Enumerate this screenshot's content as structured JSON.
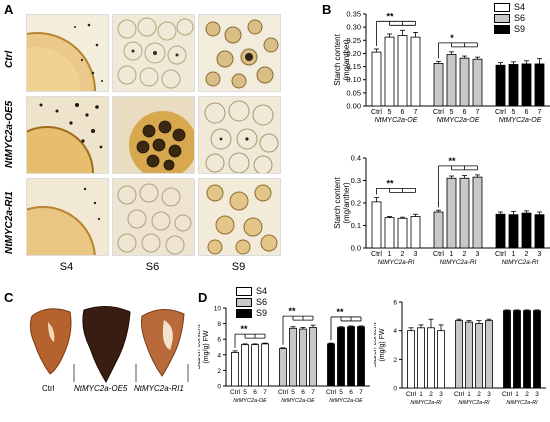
{
  "panels": {
    "A": "A",
    "B": "B",
    "C": "C",
    "D": "D"
  },
  "panelA": {
    "rows": [
      "Ctrl",
      "NtMYC2a-OE5",
      "NtMYC2a-RI1"
    ],
    "cols": [
      "S4",
      "S6",
      "S9"
    ]
  },
  "panelC": {
    "labels": [
      "Ctrl",
      "NtMYC2a-OE5",
      "NtMYC2a-RI1"
    ]
  },
  "legend": {
    "s4": "S4",
    "s6": "S6",
    "s9": "S9"
  },
  "colors": {
    "S4": "#ffffff",
    "S6": "#c8c8c8",
    "S9": "#000000"
  },
  "chart_data": [
    {
      "id": "B-top",
      "type": "bar",
      "ylabel": "Starch content (mg/anther)",
      "ylim": [
        0,
        0.35
      ],
      "yticks": [
        "0.00",
        "0.05",
        "0.10",
        "0.15",
        "0.20",
        "0.25",
        "0.30",
        "0.35"
      ],
      "groups": [
        {
          "label": "NtMYC2a-OE",
          "series": "S4",
          "categories": [
            "Ctrl",
            "5",
            "6",
            "7"
          ],
          "values": [
            0.205,
            0.262,
            0.268,
            0.262
          ],
          "errors": [
            0.012,
            0.012,
            0.02,
            0.018
          ],
          "sig": "**"
        },
        {
          "label": "NtMYC2a-OE",
          "series": "S6",
          "categories": [
            "Ctrl",
            "5",
            "6",
            "7"
          ],
          "values": [
            0.162,
            0.196,
            0.182,
            0.178
          ],
          "errors": [
            0.008,
            0.01,
            0.008,
            0.008
          ],
          "sig": "*"
        },
        {
          "label": "NtMYC2a-OE",
          "series": "S9",
          "categories": [
            "Ctrl",
            "5",
            "6",
            "7"
          ],
          "values": [
            0.155,
            0.158,
            0.16,
            0.16
          ],
          "errors": [
            0.01,
            0.01,
            0.012,
            0.02
          ],
          "sig": ""
        }
      ]
    },
    {
      "id": "B-bottom",
      "type": "bar",
      "ylabel": "Starch content (mg/anther)",
      "ylim": [
        0,
        0.4
      ],
      "yticks": [
        "0.0",
        "0.1",
        "0.2",
        "0.3",
        "0.4"
      ],
      "groups": [
        {
          "label": "NtMYC2a-RI",
          "series": "S4",
          "categories": [
            "Ctrl",
            "1",
            "2",
            "3"
          ],
          "values": [
            0.205,
            0.135,
            0.132,
            0.14
          ],
          "errors": [
            0.02,
            0.005,
            0.005,
            0.01
          ],
          "sig": "**"
        },
        {
          "label": "NtMYC2a-RI",
          "series": "S6",
          "categories": [
            "Ctrl",
            "1",
            "2",
            "3"
          ],
          "values": [
            0.16,
            0.31,
            0.31,
            0.315
          ],
          "errors": [
            0.008,
            0.01,
            0.012,
            0.01
          ],
          "sig": "**"
        },
        {
          "label": "NtMYC2a-RI",
          "series": "S9",
          "categories": [
            "Ctrl",
            "1",
            "2",
            "3"
          ],
          "values": [
            0.15,
            0.148,
            0.155,
            0.148
          ],
          "errors": [
            0.01,
            0.015,
            0.01,
            0.012
          ],
          "sig": ""
        }
      ]
    },
    {
      "id": "D-left",
      "type": "bar",
      "ylabel": "Starch content (mg/g) FW",
      "ylim": [
        0,
        10
      ],
      "yticks": [
        "0",
        "2",
        "4",
        "6",
        "8",
        "10"
      ],
      "groups": [
        {
          "label": "NtMYC2a-OE",
          "series": "S4",
          "categories": [
            "Ctrl",
            "5",
            "6",
            "7"
          ],
          "values": [
            4.3,
            5.3,
            5.3,
            5.4
          ],
          "errors": [
            0.2,
            0.1,
            0.1,
            0.1
          ],
          "sig": "**"
        },
        {
          "label": "NtMYC2a-OE",
          "series": "S6",
          "categories": [
            "Ctrl",
            "5",
            "6",
            "7"
          ],
          "values": [
            4.8,
            7.4,
            7.3,
            7.5
          ],
          "errors": [
            0.1,
            0.2,
            0.2,
            0.3
          ],
          "sig": "**"
        },
        {
          "label": "NtMYC2a-OE",
          "series": "S9",
          "categories": [
            "Ctrl",
            "5",
            "6",
            "7"
          ],
          "values": [
            5.4,
            7.5,
            7.6,
            7.6
          ],
          "errors": [
            0.1,
            0.1,
            0.1,
            0.1
          ],
          "sig": "**"
        }
      ]
    },
    {
      "id": "D-right",
      "type": "bar",
      "ylabel": "Starch content (mg/g) FW",
      "ylim": [
        0,
        6
      ],
      "yticks": [
        "0",
        "2",
        "4",
        "6"
      ],
      "groups": [
        {
          "label": "NtMYC2a-RI",
          "series": "S4",
          "categories": [
            "Ctrl",
            "1",
            "2",
            "3"
          ],
          "values": [
            4.0,
            4.2,
            4.2,
            4.0
          ],
          "errors": [
            0.2,
            0.2,
            0.6,
            0.4
          ],
          "sig": ""
        },
        {
          "label": "NtMYC2a-RI",
          "series": "S6",
          "categories": [
            "Ctrl",
            "1",
            "2",
            "3"
          ],
          "values": [
            4.7,
            4.6,
            4.5,
            4.7
          ],
          "errors": [
            0.1,
            0.1,
            0.2,
            0.1
          ],
          "sig": ""
        },
        {
          "label": "NtMYC2a-RI",
          "series": "S9",
          "categories": [
            "Ctrl",
            "1",
            "2",
            "3"
          ],
          "values": [
            5.4,
            5.4,
            5.4,
            5.4
          ],
          "errors": [
            0.05,
            0.05,
            0.05,
            0.05
          ],
          "sig": ""
        }
      ]
    }
  ]
}
